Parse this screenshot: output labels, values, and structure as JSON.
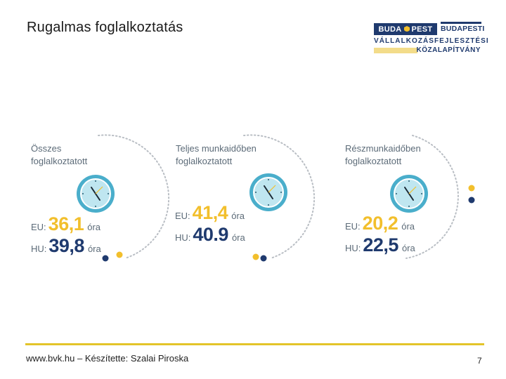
{
  "title": "Rugalmas foglalkoztatás",
  "logo": {
    "badge_left": "BUDA",
    "badge_right": "PEST",
    "line1": "BUDAPESTI",
    "line2": "VÁLLALKOZÁSFEJLESZTÉSI",
    "line3": "KÖZALAPÍTVÁNY"
  },
  "colors": {
    "eu": "#f2bf2c",
    "hu": "#1f3a6e",
    "clock_face": "#7cc8de",
    "clock_ring": "#4aaecb"
  },
  "panels": [
    {
      "label_line1": "Összes",
      "label_line2": "foglalkoztatott",
      "eu": {
        "prefix": "EU:",
        "value": "36,1",
        "unit": "óra"
      },
      "hu": {
        "prefix": "HU:",
        "value": "39,8",
        "unit": "óra"
      }
    },
    {
      "label_line1": "Teljes munkaidőben",
      "label_line2": "foglalkoztatott",
      "eu": {
        "prefix": "EU:",
        "value": "41,4",
        "unit": "óra"
      },
      "hu": {
        "prefix": "HU:",
        "value": "40.9",
        "unit": "óra"
      }
    },
    {
      "label_line1": "Részmunkaidőben",
      "label_line2": "foglalkoztatott",
      "eu": {
        "prefix": "EU:",
        "value": "20,2",
        "unit": "óra"
      },
      "hu": {
        "prefix": "HU:",
        "value": "22,5",
        "unit": "óra"
      }
    }
  ],
  "footer": {
    "text": "www.bvk.hu – Készítette: Szalai Piroska",
    "page": "7"
  }
}
